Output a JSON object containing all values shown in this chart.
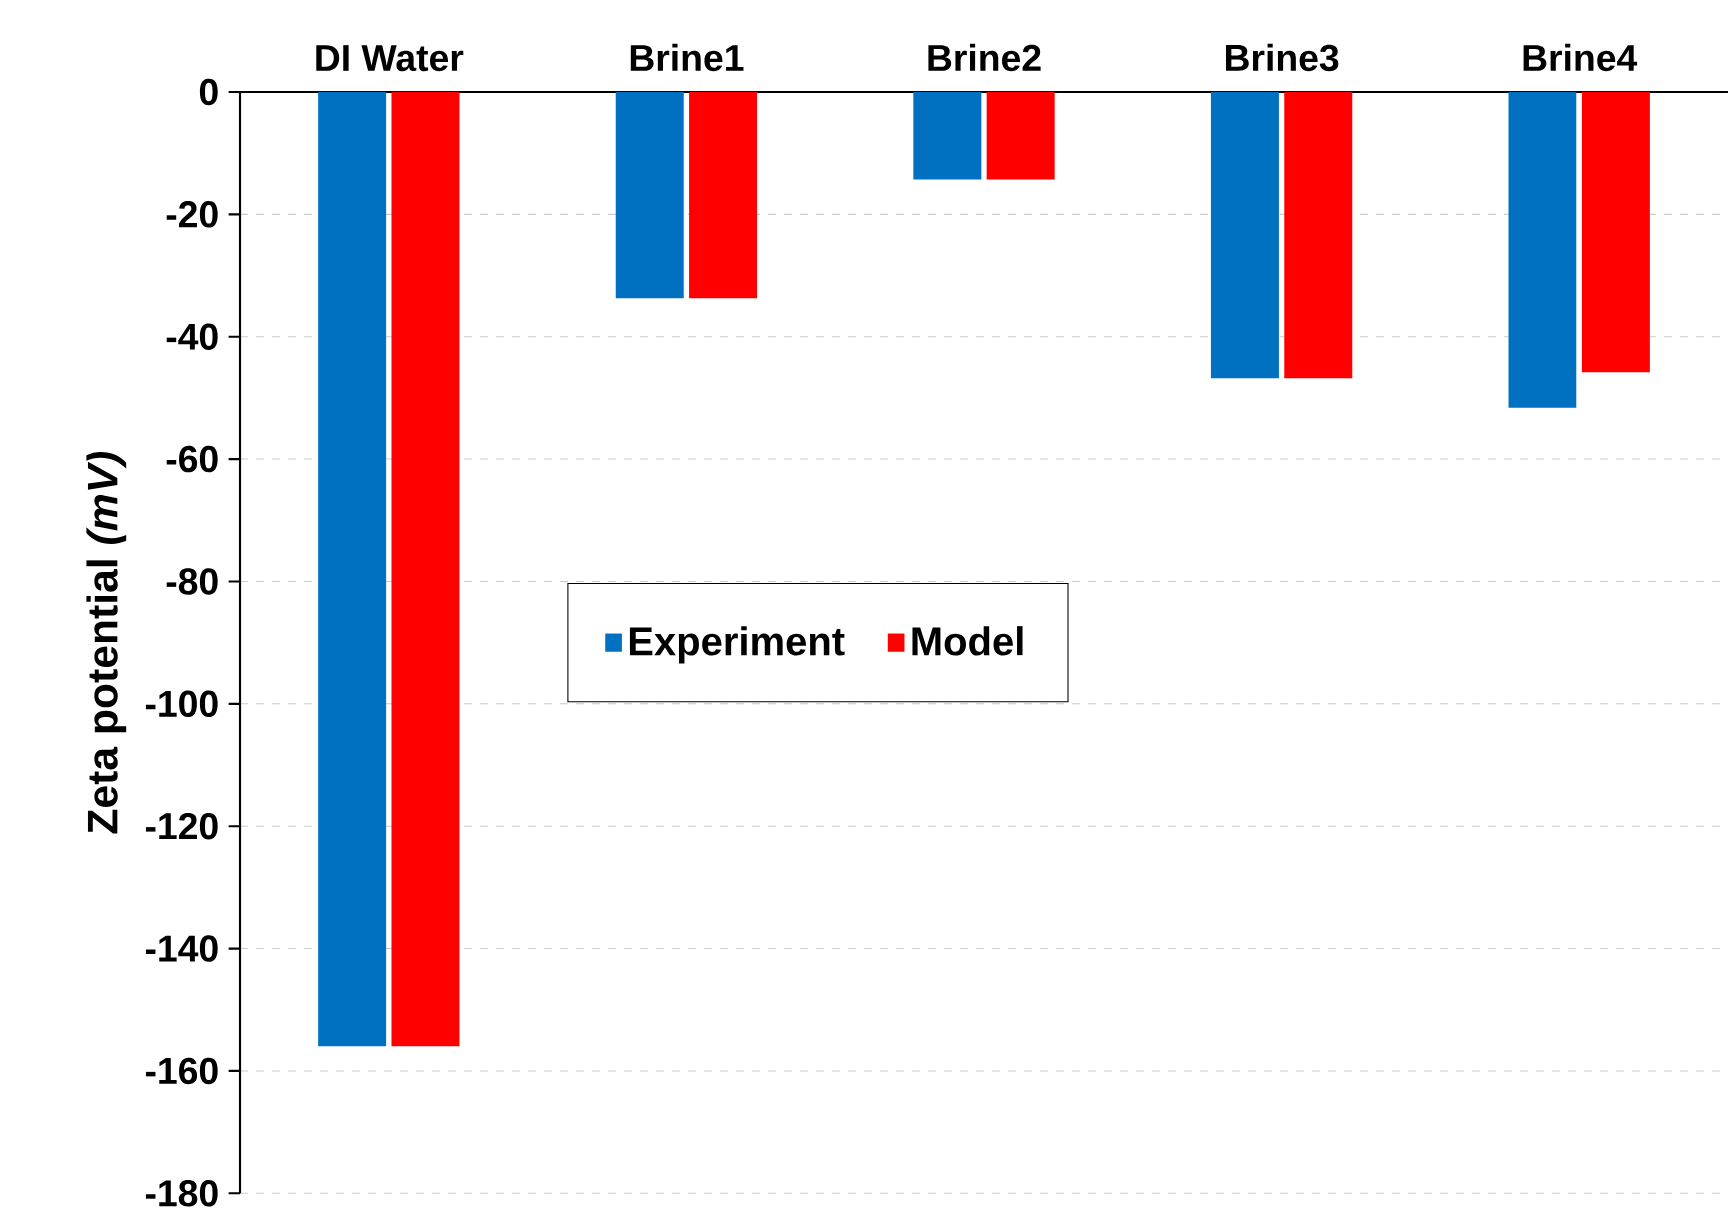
{
  "chart_data": {
    "type": "bar",
    "ylabel": "Zeta potential *(mV)*",
    "categories": [
      "DI Water",
      "Brine1",
      "Brine2",
      "Brine3",
      "Brine4"
    ],
    "series": [
      {
        "name": "Experiment",
        "color": "#0070c0",
        "values": [
          -156,
          -33.7,
          -14.3,
          -46.8,
          -51.6
        ]
      },
      {
        "name": "Model",
        "color": "#ff0000",
        "values": [
          -156,
          -33.7,
          -14.3,
          -46.8,
          -45.8
        ]
      }
    ],
    "ylim": [
      -180,
      0
    ],
    "yticks": [
      -180,
      -160,
      -140,
      -120,
      -100,
      -80,
      -60,
      -40,
      -20,
      0
    ],
    "grid": "y",
    "legend": "center"
  }
}
